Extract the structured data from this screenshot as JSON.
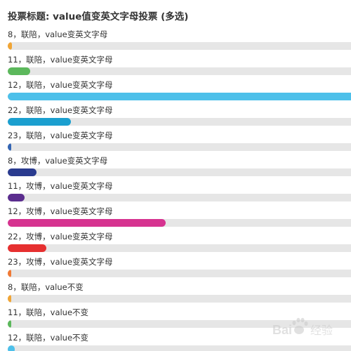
{
  "poll": {
    "title": "投票标题: value值变英文字母投票 (多选)",
    "options": [
      {
        "label": "8，联陪，value变英文字母",
        "fraction": 0.012,
        "color": "#f0a536"
      },
      {
        "label": "11，联陪，value变英文字母",
        "fraction": 0.065,
        "color": "#5cb85c"
      },
      {
        "label": "12，联陪，value变英文字母",
        "fraction": 1.0,
        "color": "#4dc0ea"
      },
      {
        "label": "22，联陪，value变英文字母",
        "fraction": 0.185,
        "color": "#1b9fcf"
      },
      {
        "label": "23，联陪，value变英文字母",
        "fraction": 0.008,
        "color": "#3465b3"
      },
      {
        "label": "8，攻博，value变英文字母",
        "fraction": 0.083,
        "color": "#2a3b8f"
      },
      {
        "label": "11，攻博，value变英文字母",
        "fraction": 0.05,
        "color": "#5b2d8e"
      },
      {
        "label": "12，攻博，value变英文字母",
        "fraction": 0.46,
        "color": "#d63390"
      },
      {
        "label": "22，攻博，value变英文字母",
        "fraction": 0.113,
        "color": "#e63030"
      },
      {
        "label": "23，攻博，value变英文字母",
        "fraction": 0.004,
        "color": "#f07a36"
      },
      {
        "label": "8，联陪，value不变",
        "fraction": 0.004,
        "color": "#f0a536"
      },
      {
        "label": "11，联陪，value不变",
        "fraction": 0.008,
        "color": "#5cb85c"
      },
      {
        "label": "12，联陪，value不变",
        "fraction": 0.02,
        "color": "#4dc0ea"
      }
    ]
  },
  "watermark": {
    "text": "Bai 经验",
    "icon": "baidu-paw-icon"
  }
}
